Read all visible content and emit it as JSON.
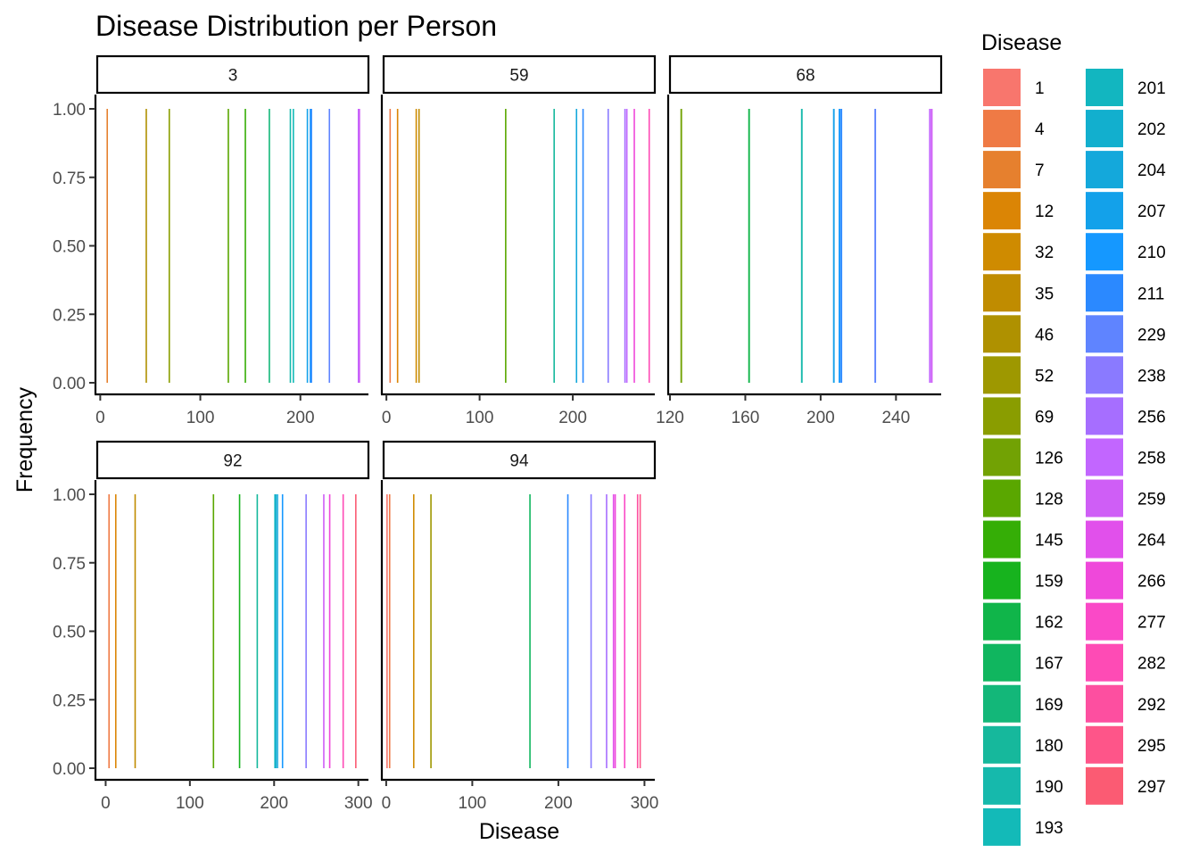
{
  "chart_data": {
    "type": "bar",
    "title": "Disease Distribution per Person",
    "xlabel": "Disease",
    "ylabel": "Frequency",
    "y_ticks": [
      "0.00",
      "0.25",
      "0.50",
      "0.75",
      "1.00"
    ],
    "ylim": [
      0,
      1
    ],
    "legend": {
      "title": "Disease",
      "position": "right",
      "columns": 2
    },
    "grid": false,
    "panels": [
      {
        "label": "3",
        "xlim": [
          -3,
          268
        ],
        "x_ticks": [
          0,
          100,
          200
        ],
        "x": [
          7,
          46,
          69,
          128,
          145,
          169,
          190,
          193,
          207,
          210,
          211,
          229,
          258,
          259
        ]
      },
      {
        "label": "59",
        "xlim": [
          -3,
          288
        ],
        "x_ticks": [
          0,
          100,
          200
        ],
        "x": [
          4,
          12,
          32,
          35,
          128,
          180,
          204,
          211,
          238,
          256,
          258,
          266,
          282
        ]
      },
      {
        "label": "68",
        "xlim": [
          120,
          264
        ],
        "x_ticks": [
          120,
          160,
          200,
          240
        ],
        "x": [
          126,
          162,
          190,
          207,
          210,
          211,
          229,
          258,
          259
        ]
      },
      {
        "label": "92",
        "xlim": [
          -10,
          312
        ],
        "x_ticks": [
          0,
          100,
          200,
          300
        ],
        "x": [
          4,
          12,
          35,
          128,
          159,
          180,
          201,
          202,
          204,
          210,
          238,
          259,
          266,
          282,
          297
        ]
      },
      {
        "label": "94",
        "xlim": [
          -3,
          312
        ],
        "x_ticks": [
          0,
          100,
          200,
          300
        ],
        "x": [
          1,
          4,
          32,
          52,
          167,
          211,
          238,
          256,
          264,
          266,
          277,
          292,
          295
        ]
      }
    ],
    "categories": [
      1,
      4,
      7,
      12,
      32,
      35,
      46,
      52,
      69,
      126,
      128,
      145,
      159,
      162,
      167,
      169,
      180,
      190,
      193,
      201,
      202,
      204,
      207,
      210,
      211,
      229,
      238,
      256,
      258,
      259,
      264,
      266,
      277,
      282,
      292,
      295,
      297
    ],
    "colors": [
      "#F8766D",
      "#EF7A45",
      "#E6802E",
      "#DB8505",
      "#CF8B00",
      "#C08C00",
      "#AF9100",
      "#9E9800",
      "#8A9D00",
      "#72A204",
      "#5AA700",
      "#35AE06",
      "#17B31E",
      "#10B54A",
      "#10B65F",
      "#13B779",
      "#16B89C",
      "#16B9AC",
      "#13BAB8",
      "#12B6C0",
      "#12AFCE",
      "#14A8DB",
      "#13A1EA",
      "#1598FF",
      "#2B89FF",
      "#5F84FF",
      "#8A7AFF",
      "#A66EFF",
      "#C266FF",
      "#CF5EF6",
      "#E150EB",
      "#EF48DA",
      "#FA49C7",
      "#FE4BB5",
      "#FD4FA0",
      "#FE5589",
      "#FB5B73"
    ]
  }
}
